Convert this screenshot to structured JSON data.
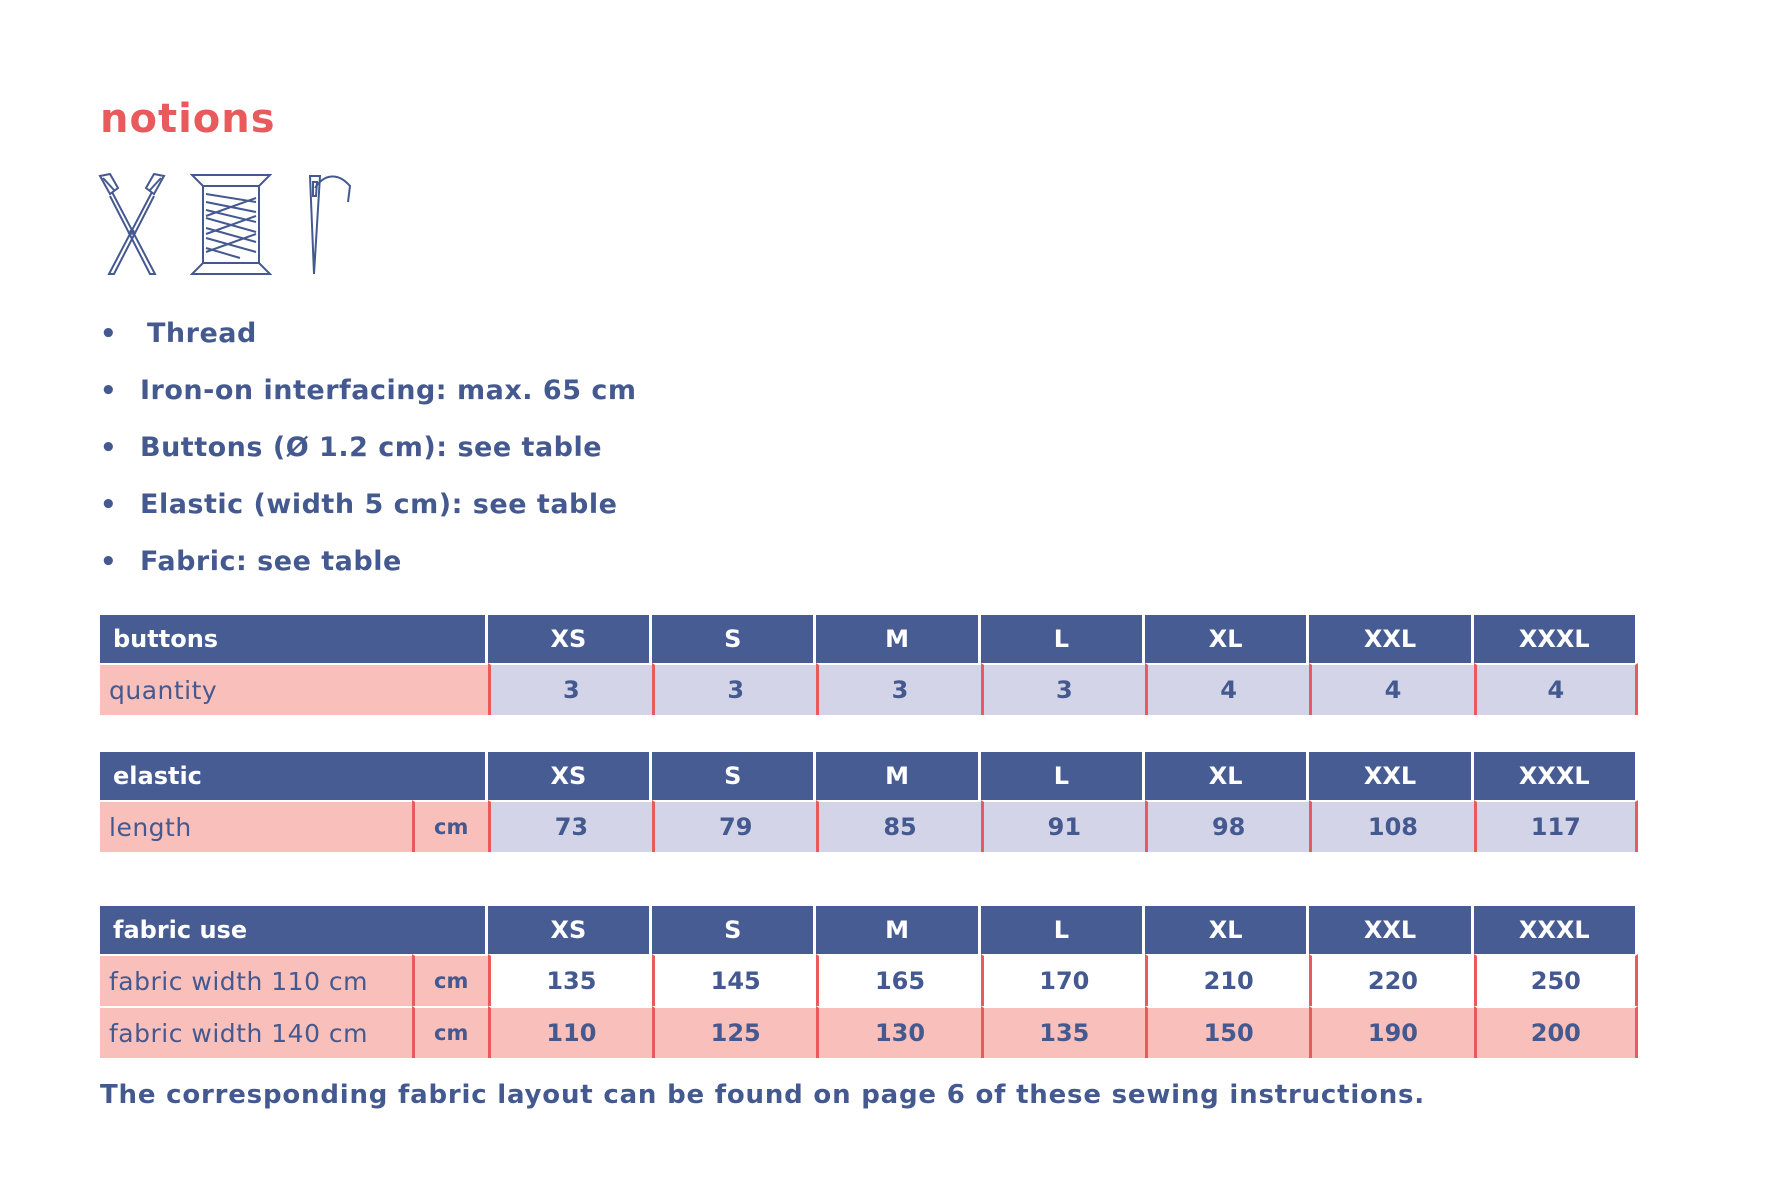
{
  "title": "notions",
  "icons": [
    "scissors-icon",
    "thread-spool-icon",
    "needle-icon"
  ],
  "bullets": [
    "Thread",
    "Iron-on interfacing: max. 65 cm",
    "Buttons (Ø 1.2 cm): see table",
    "Elastic (width 5 cm): see table",
    "Fabric: see table"
  ],
  "sizes": [
    "XS",
    "S",
    "M",
    "L",
    "XL",
    "XXL",
    "XXXL"
  ],
  "buttons_table": {
    "name": "buttons",
    "rows": [
      {
        "label": "quantity",
        "unit": "",
        "values": [
          "3",
          "3",
          "3",
          "3",
          "4",
          "4",
          "4"
        ]
      }
    ]
  },
  "elastic_table": {
    "name": "elastic",
    "rows": [
      {
        "label": "length",
        "unit": "cm",
        "values": [
          "73",
          "79",
          "85",
          "91",
          "98",
          "108",
          "117"
        ]
      }
    ]
  },
  "fabric_table": {
    "name": "fabric use",
    "rows": [
      {
        "label": "fabric width 110 cm",
        "unit": "cm",
        "values": [
          "135",
          "145",
          "165",
          "170",
          "210",
          "220",
          "250"
        ]
      },
      {
        "label": "fabric width 140 cm",
        "unit": "cm",
        "values": [
          "110",
          "125",
          "130",
          "135",
          "150",
          "190",
          "200"
        ]
      }
    ]
  },
  "footer": "The corresponding fabric layout can be found on page 6 of these sewing instructions.",
  "colors": {
    "accent_red": "#e85a5c",
    "navy": "#465c93",
    "text_blue": "#44598f",
    "pink": "#f9bfba",
    "lavender": "#d3d4e7"
  }
}
